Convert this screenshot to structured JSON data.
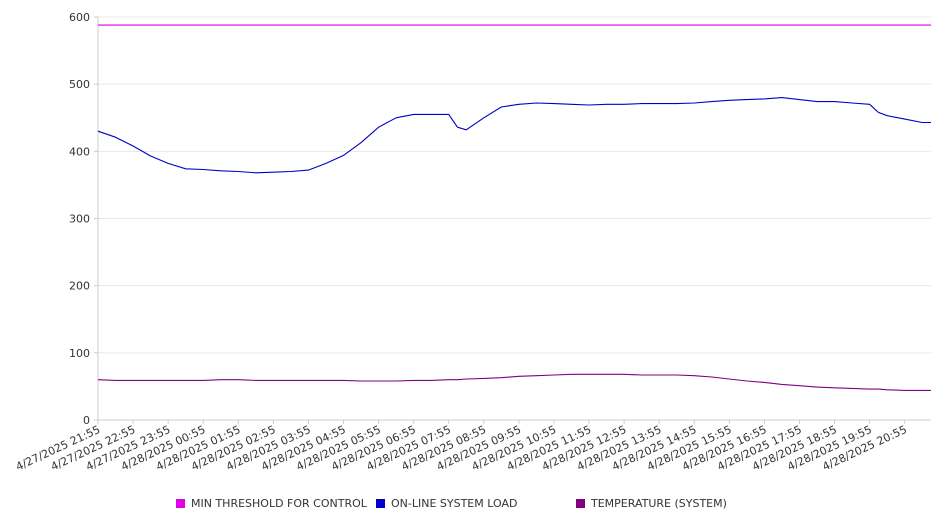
{
  "chart_data": {
    "type": "line",
    "y_ticks": [
      0,
      100,
      200,
      300,
      400,
      500,
      600
    ],
    "ylim": [
      0,
      600
    ],
    "grid": "horizontal",
    "legend_position": "bottom",
    "x_tick_labels": [
      "4/27/2025 21:55",
      "4/27/2025 22:55",
      "4/27/2025 23:55",
      "4/28/2025 00:55",
      "4/28/2025 01:55",
      "4/28/2025 02:55",
      "4/28/2025 03:55",
      "4/28/2025 04:55",
      "4/28/2025 05:55",
      "4/28/2025 06:55",
      "4/28/2025 07:55",
      "4/28/2025 08:55",
      "4/28/2025 09:55",
      "4/28/2025 10:55",
      "4/28/2025 11:55",
      "4/28/2025 12:55",
      "4/28/2025 13:55",
      "4/28/2025 14:55",
      "4/28/2025 15:55",
      "4/28/2025 16:55",
      "4/28/2025 17:55",
      "4/28/2025 18:55",
      "4/28/2025 19:55",
      "4/28/2025 20:55"
    ],
    "x": [
      "4/27/2025 21:55",
      "4/27/2025 22:25",
      "4/27/2025 22:55",
      "4/27/2025 23:25",
      "4/27/2025 23:55",
      "4/28/2025 00:25",
      "4/28/2025 00:55",
      "4/28/2025 01:25",
      "4/28/2025 01:55",
      "4/28/2025 02:25",
      "4/28/2025 02:55",
      "4/28/2025 03:25",
      "4/28/2025 03:55",
      "4/28/2025 04:25",
      "4/28/2025 04:55",
      "4/28/2025 05:25",
      "4/28/2025 05:55",
      "4/28/2025 06:25",
      "4/28/2025 06:55",
      "4/28/2025 07:25",
      "4/28/2025 07:55",
      "4/28/2025 08:10",
      "4/28/2025 08:25",
      "4/28/2025 08:55",
      "4/28/2025 09:25",
      "4/28/2025 09:55",
      "4/28/2025 10:25",
      "4/28/2025 10:55",
      "4/28/2025 11:25",
      "4/28/2025 11:55",
      "4/28/2025 12:25",
      "4/28/2025 12:55",
      "4/28/2025 13:25",
      "4/28/2025 13:55",
      "4/28/2025 14:25",
      "4/28/2025 14:55",
      "4/28/2025 15:25",
      "4/28/2025 15:55",
      "4/28/2025 16:25",
      "4/28/2025 16:55",
      "4/28/2025 17:25",
      "4/28/2025 17:55",
      "4/28/2025 18:25",
      "4/28/2025 18:55",
      "4/28/2025 19:25",
      "4/28/2025 19:55",
      "4/28/2025 20:10",
      "4/28/2025 20:25",
      "4/28/2025 20:55",
      "4/28/2025 21:25",
      "4/28/2025 21:40"
    ],
    "series": [
      {
        "name": "MIN THRESHOLD FOR CONTROL",
        "color": "#e100e1",
        "values": [
          588,
          588,
          588,
          588,
          588,
          588,
          588,
          588,
          588,
          588,
          588,
          588,
          588,
          588,
          588,
          588,
          588,
          588,
          588,
          588,
          588,
          588,
          588,
          588,
          588,
          588,
          588,
          588,
          588,
          588,
          588,
          588,
          588,
          588,
          588,
          588,
          588,
          588,
          588,
          588,
          588,
          588,
          588,
          588,
          588,
          588,
          588,
          588,
          588,
          588,
          588
        ]
      },
      {
        "name": "ON-LINE SYSTEM LOAD",
        "color": "#0000c8",
        "values": [
          430,
          421,
          408,
          393,
          382,
          374,
          373,
          371,
          370,
          368,
          369,
          370,
          372,
          382,
          394,
          413,
          436,
          450,
          455,
          455,
          455,
          436,
          432,
          450,
          466,
          470,
          472,
          471,
          470,
          469,
          470,
          470,
          471,
          471,
          471,
          472,
          474,
          476,
          477,
          478,
          480,
          477,
          474,
          474,
          472,
          470,
          458,
          453,
          448,
          443,
          443
        ]
      },
      {
        "name": "TEMPERATURE (SYSTEM)",
        "color": "#800080",
        "values": [
          60,
          59,
          59,
          59,
          59,
          59,
          59,
          60,
          60,
          59,
          59,
          59,
          59,
          59,
          59,
          58,
          58,
          58,
          59,
          59,
          60,
          60,
          61,
          62,
          63,
          65,
          66,
          67,
          68,
          68,
          68,
          68,
          67,
          67,
          67,
          66,
          64,
          61,
          58,
          56,
          53,
          51,
          49,
          48,
          47,
          46,
          46,
          45,
          44,
          44,
          44
        ]
      }
    ]
  }
}
